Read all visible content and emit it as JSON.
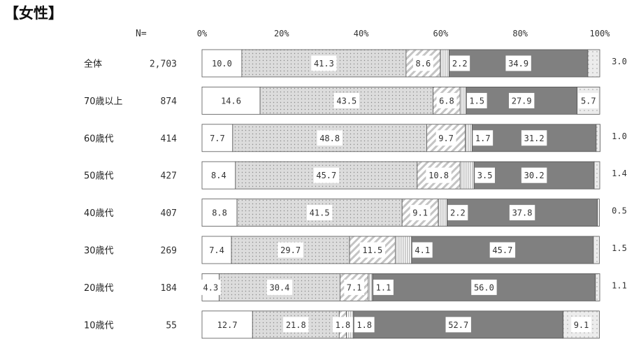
{
  "title": "【女性】",
  "n_header": "N=",
  "chart_data": {
    "type": "bar",
    "orientation": "horizontal",
    "stacked": true,
    "percent_stacked": true,
    "xlim": [
      0,
      100
    ],
    "x_ticks": [
      "0%",
      "20%",
      "40%",
      "60%",
      "80%",
      "100%"
    ],
    "categories": [
      "全体",
      "70歳以上",
      "60歳代",
      "50歳代",
      "40歳代",
      "30歳代",
      "20歳代",
      "10歳代"
    ],
    "n_values": [
      "2,703",
      "874",
      "414",
      "427",
      "407",
      "269",
      "184",
      "55"
    ],
    "series": [
      {
        "color": "#ffffff",
        "pattern": "none",
        "values": [
          10.0,
          14.6,
          7.7,
          8.4,
          8.8,
          7.4,
          4.3,
          12.7
        ],
        "labels": [
          "10.0",
          "14.6",
          "7.7",
          "8.4",
          "8.8",
          "7.4",
          "4.3",
          "12.7"
        ]
      },
      {
        "color": "#dcdcdc",
        "pattern": "dots",
        "values": [
          41.3,
          43.5,
          48.8,
          45.7,
          41.5,
          29.7,
          30.4,
          21.8
        ],
        "labels": [
          "41.3",
          "43.5",
          "48.8",
          "45.7",
          "41.5",
          "29.7",
          "30.4",
          "21.8"
        ]
      },
      {
        "color": "#ffffff",
        "pattern": "diagonal",
        "values": [
          8.6,
          6.8,
          9.7,
          10.8,
          9.1,
          11.5,
          7.1,
          1.8
        ],
        "labels": [
          "8.6",
          "6.8",
          "9.7",
          "10.8",
          "9.1",
          "11.5",
          "7.1",
          "1.8"
        ]
      },
      {
        "color": "#c8c8c8",
        "pattern": "vertical",
        "values": [
          2.2,
          1.5,
          1.7,
          3.5,
          2.2,
          4.1,
          1.1,
          1.8
        ],
        "labels": [
          "2.2",
          "1.5",
          "1.7",
          "3.5",
          "2.2",
          "4.1",
          "1.1",
          "1.8"
        ]
      },
      {
        "color": "#808080",
        "pattern": "none",
        "values": [
          34.9,
          27.9,
          31.2,
          30.2,
          37.8,
          45.7,
          56.0,
          52.7
        ],
        "labels": [
          "34.9",
          "27.9",
          "31.2",
          "30.2",
          "37.8",
          "45.7",
          "56.0",
          "52.7"
        ]
      },
      {
        "color": "#e4e4e4",
        "pattern": "dots-light",
        "values": [
          3.0,
          5.7,
          1.0,
          1.4,
          0.5,
          1.5,
          1.1,
          9.1
        ],
        "labels": [
          "3.0",
          "5.7",
          "1.0",
          "1.4",
          "0.5",
          "1.5",
          "1.1",
          "9.1"
        ]
      }
    ]
  }
}
